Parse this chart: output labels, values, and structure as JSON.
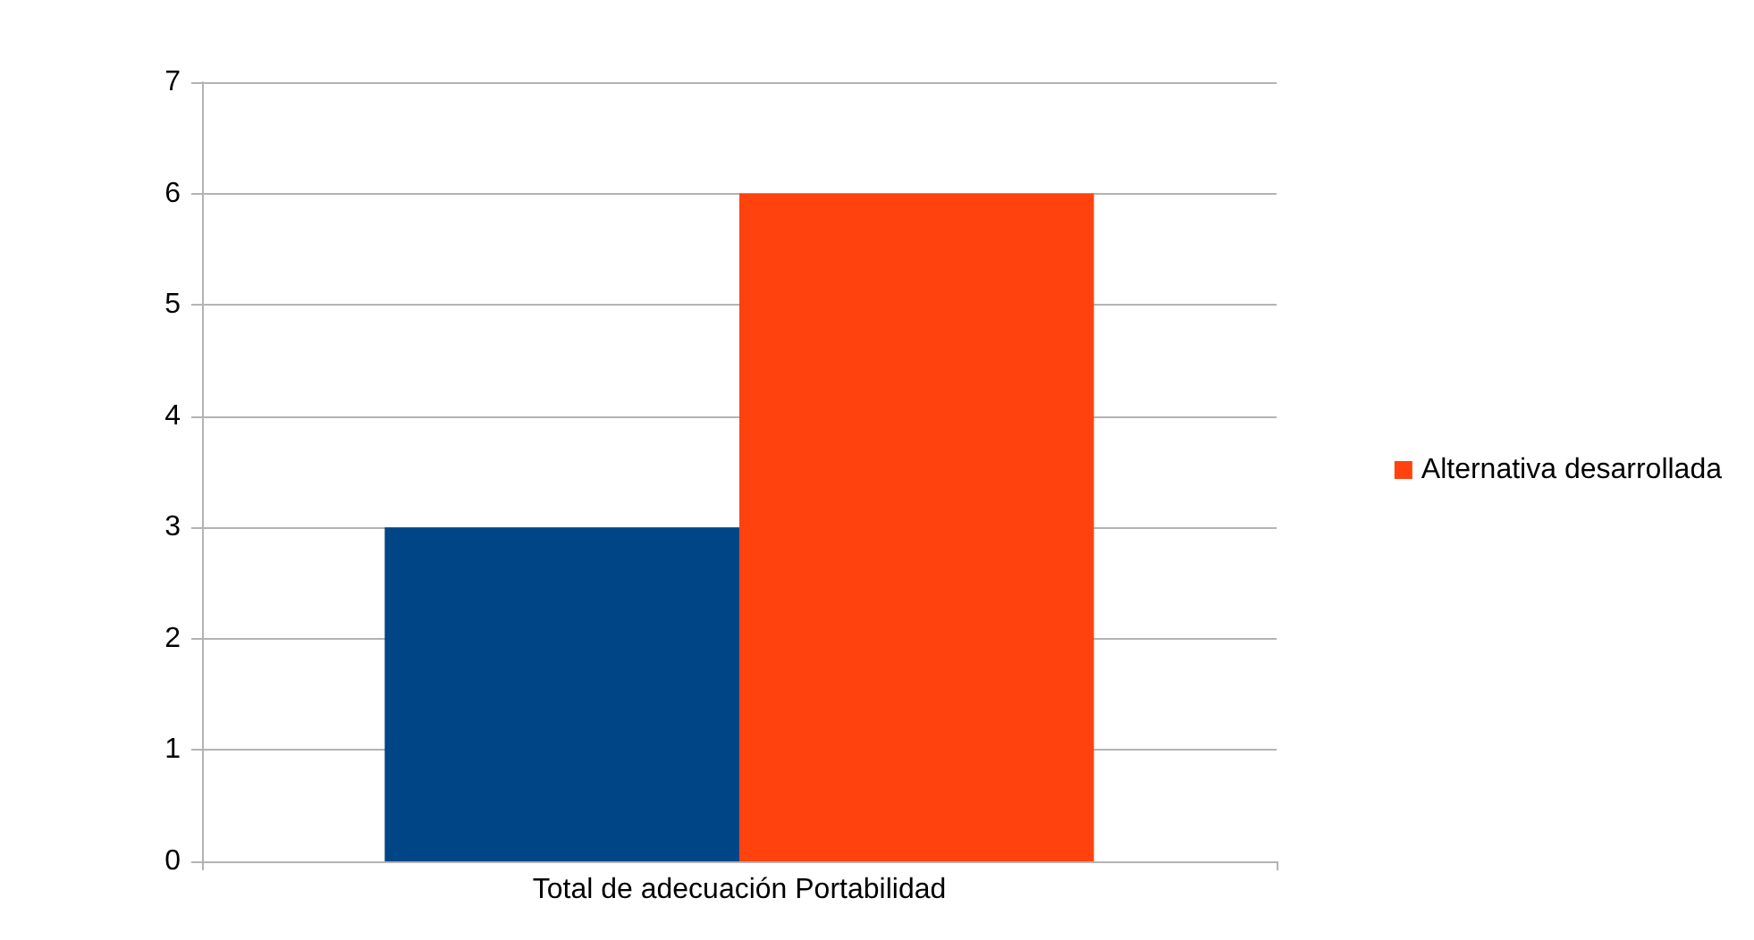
{
  "chart_data": {
    "type": "bar",
    "categories": [
      "Total de adecuación Portabilidad"
    ],
    "series": [
      {
        "color": "#004586",
        "values": [
          3
        ]
      },
      {
        "name": "Alternativa desarrollada",
        "color": "#ff420e",
        "values": [
          6
        ]
      }
    ],
    "ylim": [
      0,
      7
    ],
    "yticks": [
      0,
      1,
      2,
      3,
      4,
      5,
      6,
      7
    ],
    "grid": "y",
    "legend": "right"
  }
}
